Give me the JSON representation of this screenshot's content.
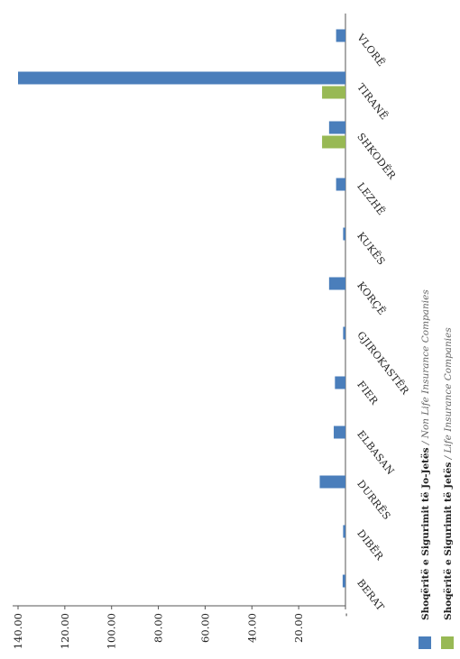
{
  "chart_data": {
    "type": "bar",
    "orientation": "horizontal",
    "categories": [
      "BERAT",
      "DIBËR",
      "DURRËS",
      "ELBASAN",
      "FIER",
      "GJIROKASTËR",
      "KORÇË",
      "KUKËS",
      "LEZHË",
      "SHKODËR",
      "TIRANË",
      "VLORË"
    ],
    "series": [
      {
        "name_bold": "Shoqëritë e Sigurimit të Jo-Jetës",
        "name_sep": " / ",
        "name_italic": "Non Life Insurance Companies",
        "color": "#4a7ebb",
        "values": [
          1.2,
          1.0,
          11.0,
          5.0,
          4.5,
          1.0,
          7.0,
          1.0,
          4.0,
          7.0,
          140.0,
          4.0
        ]
      },
      {
        "name_bold": "Shoqëritë e Sigurimit të Jetës",
        "name_sep": " / ",
        "name_italic": "Life Insurance Companies",
        "color": "#98b954",
        "values": [
          0,
          0,
          0,
          0,
          0,
          0,
          0,
          0,
          0,
          10.0,
          10.0,
          0
        ]
      }
    ],
    "value_axis": {
      "range": [
        0,
        140
      ],
      "ticks": [
        0,
        20,
        40,
        60,
        80,
        100,
        120,
        140
      ],
      "tick_labels": [
        "-",
        "20.00",
        "40.00",
        "60.00",
        "80.00",
        "100.00",
        "120.00",
        "140.00"
      ]
    },
    "grid": false,
    "legend_position": "right"
  }
}
